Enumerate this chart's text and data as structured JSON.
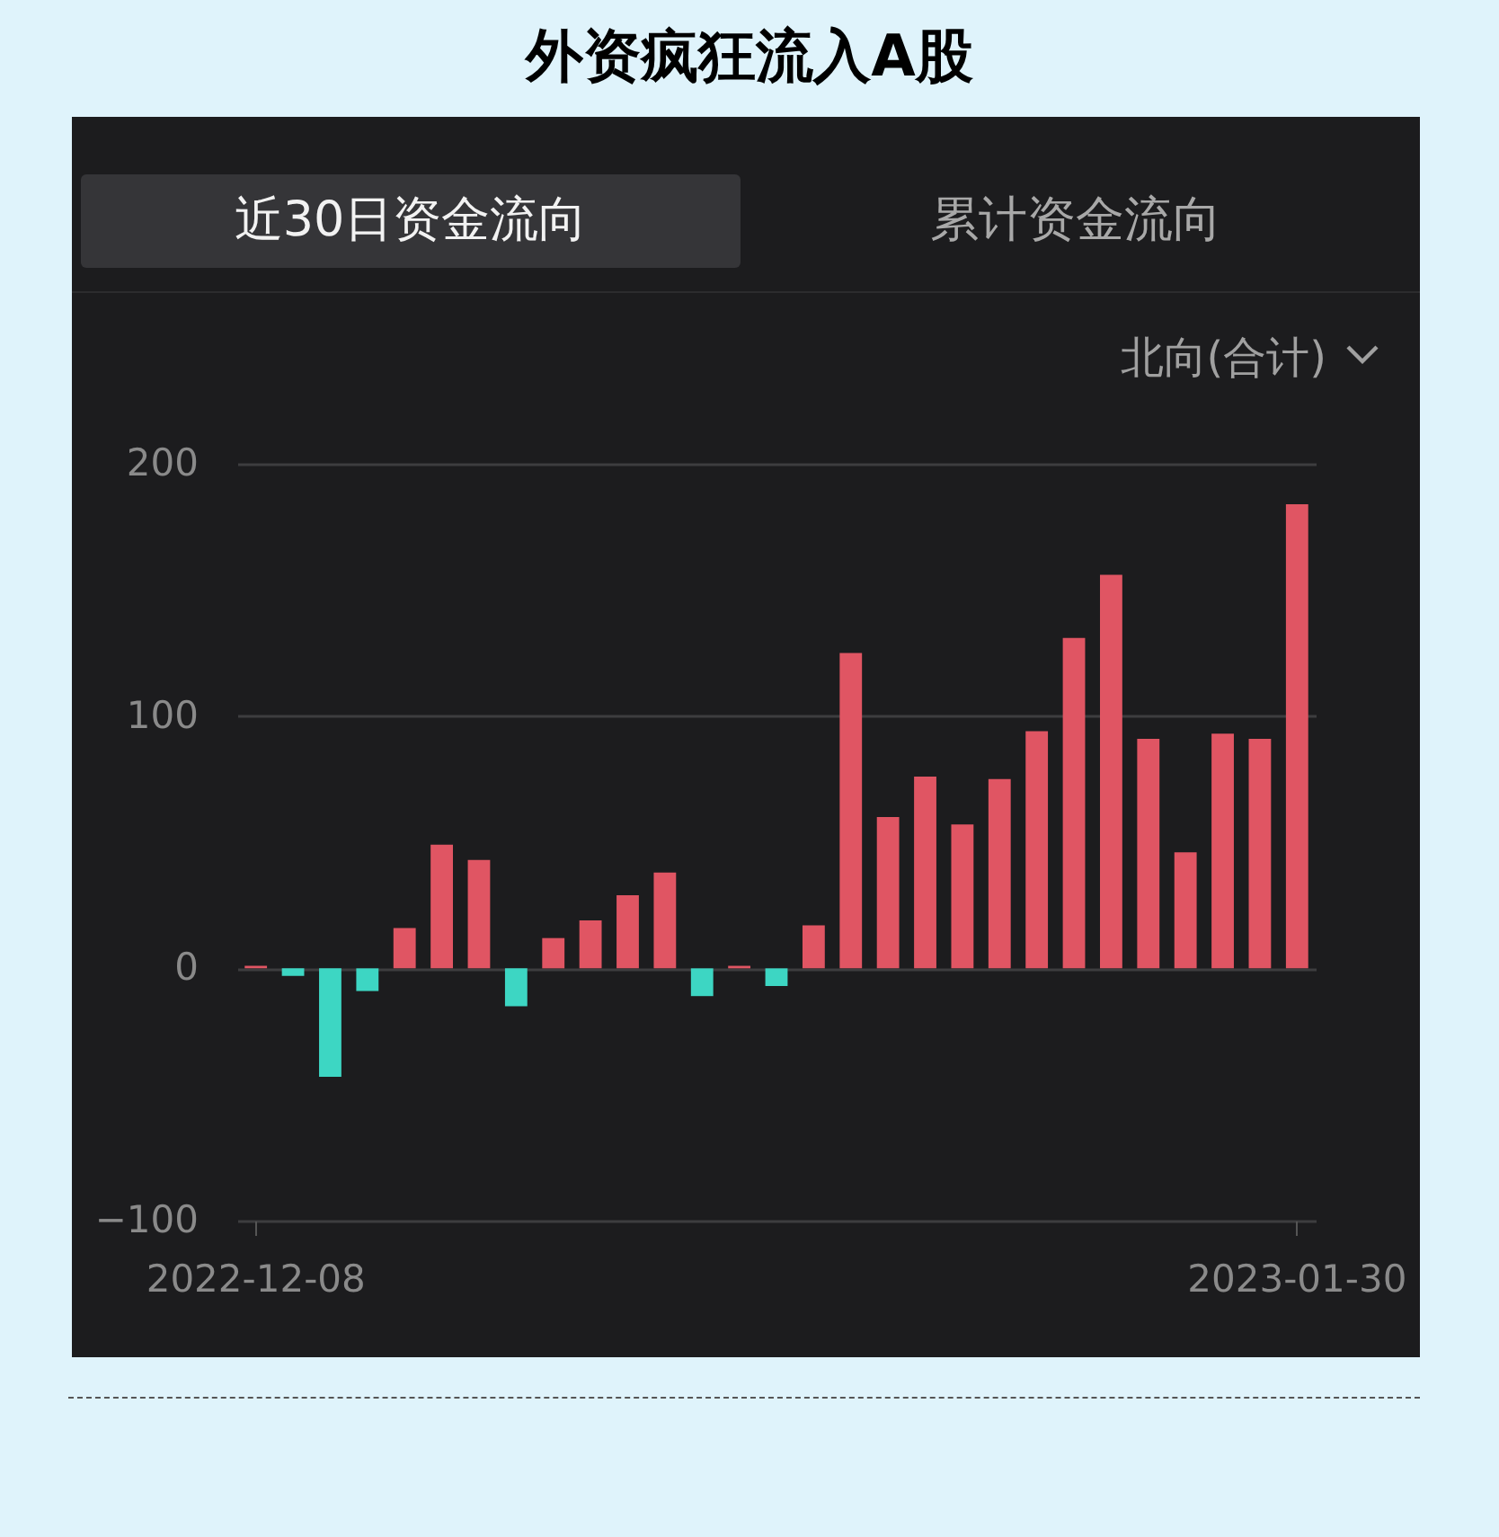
{
  "chart_data": {
    "type": "bar",
    "title": "外资疯狂流入A股",
    "annotations": [
      "近30日资金流向",
      "累计资金流向",
      "北向(合计)"
    ],
    "categories": [
      "2022-12-08",
      null,
      null,
      null,
      null,
      null,
      null,
      null,
      null,
      null,
      null,
      null,
      null,
      null,
      null,
      null,
      null,
      null,
      null,
      null,
      null,
      null,
      null,
      null,
      null,
      null,
      null,
      null,
      "2023-01-30"
    ],
    "values": [
      1,
      -3,
      -43,
      -9,
      16,
      49,
      43,
      -15,
      12,
      19,
      29,
      38,
      -11,
      1,
      -7,
      17,
      125,
      60,
      76,
      57,
      75,
      94,
      131,
      156,
      91,
      46,
      93,
      91,
      184
    ],
    "colors": [
      "#e05563",
      "#3dd6c3",
      "#3dd6c3",
      "#3dd6c3",
      "#e05563",
      "#e05563",
      "#e05563",
      "#3dd6c3",
      "#e05563",
      "#e05563",
      "#e05563",
      "#e05563",
      "#3dd6c3",
      "#e05563",
      "#3dd6c3",
      "#e05563",
      "#e05563",
      "#e05563",
      "#e05563",
      "#e05563",
      "#e05563",
      "#e05563",
      "#e05563",
      "#e05563",
      "#e05563",
      "#e05563",
      "#e05563",
      "#e05563",
      "#e05563"
    ],
    "ylim": [
      -100,
      200
    ],
    "yticks": [
      -100,
      0,
      100,
      200
    ],
    "grid": "y"
  }
}
